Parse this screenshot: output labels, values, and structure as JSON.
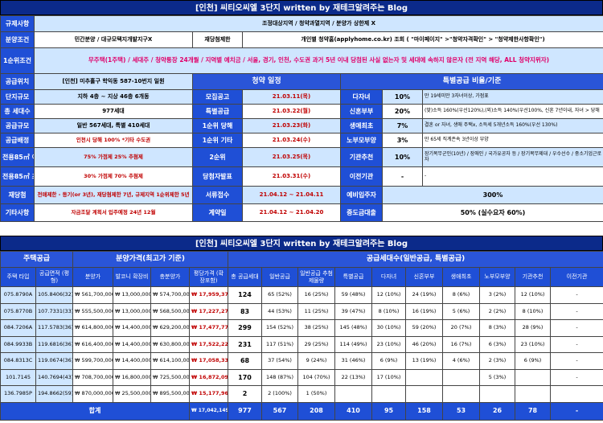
{
  "t1": {
    "title": "[인천] 씨티오씨엘 3단지 written by 재테크알려주는 Blog",
    "reg_lbl": "규제사항",
    "reg_val": "조정대상지역 / 청약과열지역 / 분양가 상한제 X",
    "cond_lbl": "분양조건",
    "cond_val": "민간분양 / 대규모택지개발지구X",
    "rewin_lbl": "재당첨제한",
    "rewin_val": "개인별 청약홈(applyhome.co.kr) 조회 ( \"마이페이지\" >\"청약자격확인\" > \"청약제한사항확인\")",
    "first_lbl": "1순위조건",
    "first_val": "무주택(1주택) / 세대주 / 청약통장 24개월 / 지역별 예치금 / 서울, 경기, 인천, 수도권 과거 5년 이내 당첨된 사실 없는자 및 세대에 속하지 않은자 (전 지역 해당, ALL 청약지위자)",
    "loc_lbl": "공급위치",
    "loc_val": "[인천] 미추홀구 학익동 587-10번지 일원",
    "sched_hd": "청약 일정",
    "special_hd": "특별공급 비율/기준",
    "rows": [
      {
        "l": "단지규모",
        "v": "지하 4층 ~ 지상 46층 6개동",
        "s": "모집공고",
        "d": "21.03.11(목)",
        "sp": "다자녀",
        "pct": "10%",
        "desc": "만 19세미만 3자녀이상, 가점표"
      },
      {
        "l": "총 세대수",
        "v": "977세대",
        "s": "특별공급",
        "d": "21.03.22(월)",
        "sp": "신혼부부",
        "pct": "20%",
        "desc": "(맞)소득 160%(우선120%),(외)소득 140%(우선100%, 신혼 7년이내, 자녀 > 당해"
      },
      {
        "l": "공급규모",
        "v": "일반 567세대, 특별 410세대",
        "s": "1순위 당해",
        "d": "21.03.23(화)",
        "sp": "생애최초",
        "pct": "7%",
        "desc": "결혼 or 자녀, 생애 주택x, 소득세 5개년소득 160%(우선 130%)"
      },
      {
        "l": "공급배정",
        "v": "인천시 당해 100% *기타 수도권",
        "s": "1순위 기타",
        "d": "21.03.24(수)",
        "sp": "노부모부양",
        "pct": "3%",
        "desc": "만 65세 직계존속 3년이상 부양"
      },
      {
        "l": "전용85㎡ 이하",
        "v": "75% 가점제 25% 추첨제",
        "s": "2순위",
        "d": "21.03.25(목)",
        "sp": "기관추천",
        "pct": "10%",
        "desc": "장기복무군인(10년) / 장애인 / 국가유공자 등 / 장기복무제대 / 우수선수 / 중소기업근로자"
      },
      {
        "l": "전용85㎡ 초과",
        "v": "30% 가점제 70% 추첨제",
        "s": "당첨자발표",
        "d": "21.03.31(수)",
        "sp": "이전기관",
        "pct": "-",
        "desc": "-"
      },
      {
        "l": "재당첨",
        "v": "전매제한 - 등기(or 3년), 재당첨제한 7년, 규제지역 1순위제한 5년",
        "s": "서류접수",
        "d": "21.04.12 ~ 21.04.11",
        "sp": "예비입주자",
        "pct": "300%",
        "desc": ""
      },
      {
        "l": "기타사항",
        "v": "자금조달 계획서 입주예정 24년 12월",
        "s": "계약일",
        "d": "21.04.12 ~ 21.04.20",
        "sp": "중도금대출",
        "pct": "50% (실수요자 60%)",
        "desc": ""
      }
    ]
  },
  "t2": {
    "title": "[인천] 씨티오씨엘 3단지 written by 재테크알려주는 Blog",
    "grp": {
      "supply": "주택공급",
      "price": "분양가격(최고가 기준)",
      "counts": "공급세대수(일반공급, 특별공급)"
    },
    "cols": [
      "주택 타입",
      "공급면적 (평형)",
      "분양가",
      "발코니 확장비",
      "총분양가",
      "평당가격 (확장포함)",
      "총 공급세대",
      "일반공급",
      "일반공급 추첨제물량",
      "특별공급",
      "다자녀",
      "신혼부부",
      "생애최초",
      "노부모부양",
      "기관추천",
      "이전기관"
    ],
    "rows": [
      [
        "075.8790A",
        "105.8406(32)",
        "₩ 561,700,000",
        "₩ 13,000,000",
        "₩ 574,700,000",
        "₩ 17,959,375",
        "124",
        "65 (52%)",
        "16 (25%)",
        "59 (48%)",
        "12 (10%)",
        "24 (19%)",
        "8 (6%)",
        "3 (2%)",
        "12 (10%)",
        "-"
      ],
      [
        "075.8770B",
        "107.7331(33)",
        "₩ 555,500,000",
        "₩ 13,000,000",
        "₩ 568,500,000",
        "₩ 17,227,273",
        "83",
        "44 (53%)",
        "11 (25%)",
        "39 (47%)",
        "8 (10%)",
        "16 (19%)",
        "5 (6%)",
        "2 (2%)",
        "8 (10%)",
        "-"
      ],
      [
        "084.7206A",
        "117.5783(36)",
        "₩ 614,800,000",
        "₩ 14,400,000",
        "₩ 629,200,000",
        "₩ 17,477,778",
        "299",
        "154 (52%)",
        "38 (25%)",
        "145 (48%)",
        "30 (10%)",
        "59 (20%)",
        "20 (7%)",
        "8 (3%)",
        "28 (9%)",
        "-"
      ],
      [
        "084.9933B",
        "119.6816(36)",
        "₩ 616,400,000",
        "₩ 14,400,000",
        "₩ 630,800,000",
        "₩ 17,522,222",
        "231",
        "117 (51%)",
        "29 (25%)",
        "114 (49%)",
        "23 (10%)",
        "46 (20%)",
        "16 (7%)",
        "6 (3%)",
        "23 (10%)",
        "-"
      ],
      [
        "084.8313C",
        "119.0674(36)",
        "₩ 599,700,000",
        "₩ 14,400,000",
        "₩ 614,100,000",
        "₩ 17,058,333",
        "68",
        "37 (54%)",
        "9 (24%)",
        "31 (46%)",
        "6 (9%)",
        "13 (19%)",
        "4 (6%)",
        "2 (3%)",
        "6 (9%)",
        "-"
      ],
      [
        "101.7145",
        "140.7694(43)",
        "₩ 708,700,000",
        "₩ 16,800,000",
        "₩ 725,500,000",
        "₩ 16,872,093",
        "170",
        "148 (87%)",
        "104 (70%)",
        "22 (13%)",
        "17 (10%)",
        "",
        "",
        "5 (3%)",
        "",
        "-"
      ],
      [
        "136.7985P",
        "194.8662(59)",
        "₩ 870,000,000",
        "₩ 25,500,000",
        "₩ 895,500,000",
        "₩ 15,177,966",
        "2",
        "2 (100%)",
        "1 (50%)",
        "",
        "",
        "",
        "",
        "",
        "",
        ""
      ]
    ],
    "total_lbl": "합계",
    "total": [
      "₩ 17,042,149",
      "977",
      "567",
      "208",
      "410",
      "95",
      "158",
      "53",
      "26",
      "78",
      "-"
    ]
  }
}
